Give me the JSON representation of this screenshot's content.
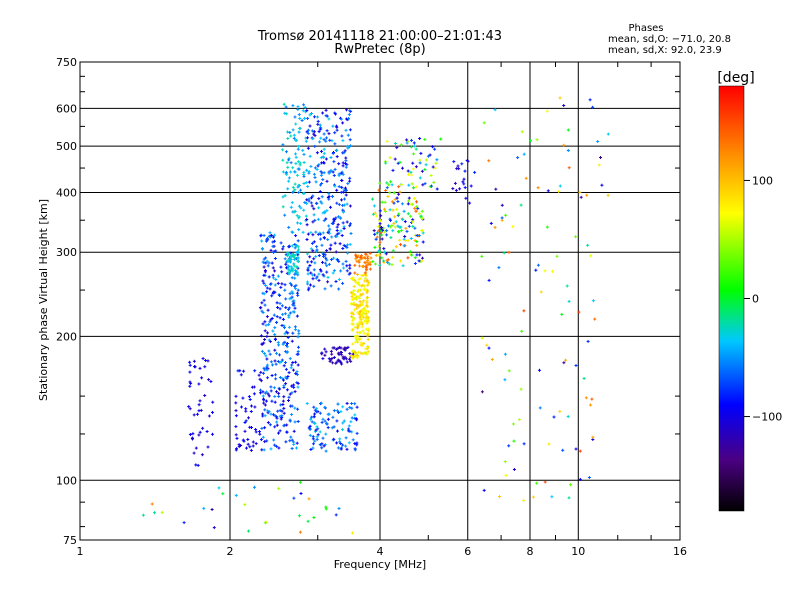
{
  "chart_data": {
    "type": "scatter",
    "title": "Tromsø 20141118 21:00:00–21:01:43",
    "subtitle": "RwPretec (8p)",
    "xlabel": "Frequency [MHz]",
    "ylabel": "Stationary phase Virtual Height [km]",
    "x_scale": "log",
    "y_scale": "log",
    "xlim": [
      1,
      16
    ],
    "ylim": [
      75,
      750
    ],
    "x_ticks": [
      1,
      2,
      4,
      6,
      8,
      10,
      16
    ],
    "x_tick_labels": [
      "1",
      "2",
      "4",
      "6",
      "8",
      "10",
      "16"
    ],
    "y_ticks": [
      75,
      100,
      200,
      300,
      400,
      500,
      600,
      750
    ],
    "y_tick_labels": [
      "75",
      "100",
      "200",
      "300",
      "400",
      "500",
      "600",
      "750"
    ],
    "grid": true,
    "annotation": {
      "heading": "Phases",
      "line1": "mean, sd,O: −71.0, 20.8",
      "line2": "mean, sd,X:  92.0, 23.9"
    },
    "colorbar": {
      "label": "[deg]",
      "range": [
        -180,
        180
      ],
      "ticks": [
        100,
        0,
        -100
      ],
      "tick_labels": [
        "100",
        "0",
        "−100"
      ]
    },
    "clusters": [
      {
        "x": [
          1.65,
          1.85
        ],
        "y": [
          105,
          180
        ],
        "phase": [
          -110,
          -90
        ],
        "n": 45
      },
      {
        "x": [
          2.05,
          2.35
        ],
        "y": [
          115,
          170
        ],
        "phase": [
          -110,
          -80
        ],
        "n": 60
      },
      {
        "x": [
          2.3,
          2.75
        ],
        "y": [
          115,
          330
        ],
        "phase": [
          -110,
          -40
        ],
        "n": 360
      },
      {
        "x": [
          2.6,
          2.75
        ],
        "y": [
          270,
          310
        ],
        "phase": [
          -45,
          -15
        ],
        "n": 50
      },
      {
        "x": [
          2.55,
          2.85
        ],
        "y": [
          330,
          620
        ],
        "phase": [
          -60,
          -20
        ],
        "n": 110
      },
      {
        "x": [
          2.85,
          3.5
        ],
        "y": [
          250,
          600
        ],
        "phase": [
          -110,
          -30
        ],
        "n": 330
      },
      {
        "x": [
          2.85,
          3.6
        ],
        "y": [
          115,
          145
        ],
        "phase": [
          -100,
          -30
        ],
        "n": 110
      },
      {
        "x": [
          3.05,
          3.55
        ],
        "y": [
          175,
          190
        ],
        "phase": [
          -130,
          -100
        ],
        "n": 50
      },
      {
        "x": [
          3.5,
          3.8
        ],
        "y": [
          180,
          270
        ],
        "phase": [
          60,
          100
        ],
        "n": 200
      },
      {
        "x": [
          3.55,
          3.85
        ],
        "y": [
          270,
          300
        ],
        "phase": [
          110,
          150
        ],
        "n": 45
      },
      {
        "x": [
          3.85,
          4.9
        ],
        "y": [
          280,
          420
        ],
        "phase": [
          -120,
          150
        ],
        "n": 170
      },
      {
        "x": [
          4.1,
          5.3
        ],
        "y": [
          400,
          520
        ],
        "phase": [
          -120,
          80
        ],
        "n": 60
      },
      {
        "x": [
          5.6,
          6.2
        ],
        "y": [
          380,
          470
        ],
        "phase": [
          -120,
          -80
        ],
        "n": 20
      },
      {
        "x": [
          6.4,
          11.5
        ],
        "y": [
          90,
          650
        ],
        "phase": [
          -140,
          160
        ],
        "n": 110
      },
      {
        "x": [
          1.3,
          3.6
        ],
        "y": [
          77,
          100
        ],
        "phase": [
          -120,
          160
        ],
        "n": 30
      }
    ]
  }
}
